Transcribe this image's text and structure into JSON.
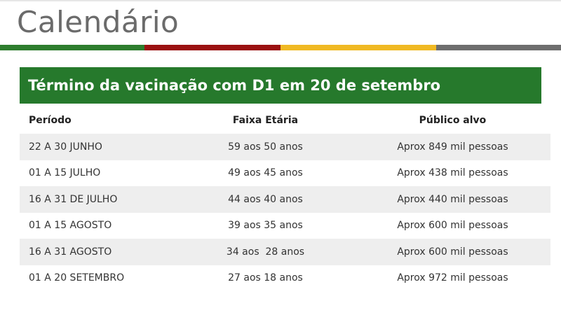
{
  "page": {
    "title": "Calendário"
  },
  "stripe_colors": [
    "#2e7d2e",
    "#9b1111",
    "#f0b923",
    "#6e6e6e"
  ],
  "banner": {
    "text": "Término da vacinação com D1 em 20 de setembro",
    "background": "#26792c"
  },
  "table": {
    "headers": {
      "periodo": "Período",
      "faixa": "Faixa Etária",
      "publico": "Público alvo"
    },
    "rows": [
      {
        "periodo": "22 A 30 JUNHO",
        "faixa": "59 aos 50 anos",
        "publico": "Aprox 849 mil pessoas"
      },
      {
        "periodo": "01 A 15 JULHO",
        "faixa": "49 aos 45 anos",
        "publico": "Aprox 438 mil pessoas"
      },
      {
        "periodo": "16 A 31 DE JULHO",
        "faixa": "44 aos 40 anos",
        "publico": "Aprox 440 mil pessoas"
      },
      {
        "periodo": "01 A 15 AGOSTO",
        "faixa": "39 aos 35 anos",
        "publico": "Aprox 600 mil pessoas"
      },
      {
        "periodo": "16 A 31 AGOSTO",
        "faixa": "34 aos  28 anos",
        "publico": "Aprox 600 mil pessoas"
      },
      {
        "periodo": "01 A 20 SETEMBRO",
        "faixa": "27 aos 18 anos",
        "publico": "Aprox 972 mil pessoas"
      }
    ]
  }
}
